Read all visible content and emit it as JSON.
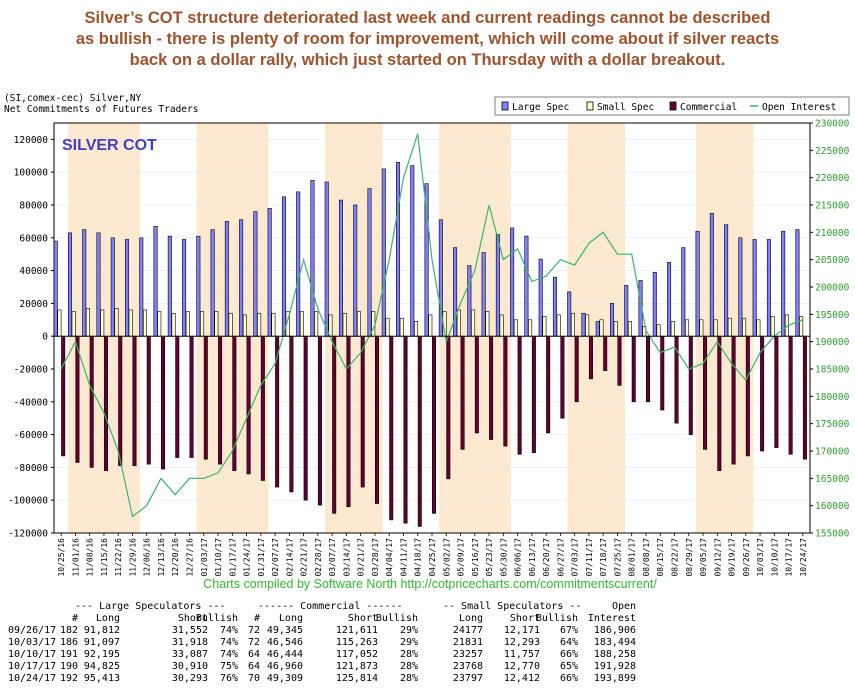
{
  "headline": [
    "Silver’s COT structure deteriorated last week and current readings cannot be described",
    "as bullish - there is plenty of room for improvement, which will come about if silver reacts",
    "back on a dollar rally, which just started on Thursday with a dollar breakout."
  ],
  "chart": {
    "header_line1": "(SI,comex-cec) Silver,NY",
    "header_line2": "Net Commitments of Futures Traders",
    "inset_title": "SILVER COT",
    "credit": "Charts compiled by Software North  http://cotpricecharts.com/commitmentscurrent/"
  },
  "chart_data": {
    "type": "bar",
    "title": "SILVER COT",
    "legend_position": "top-right",
    "left_ylim": [
      -120000,
      130000
    ],
    "right_ylim": [
      155000,
      230000
    ],
    "left_ticks": [
      "-120000",
      "-100000",
      "-80000",
      "-60000",
      "-40000",
      "-20000",
      "0",
      "20000",
      "40000",
      "60000",
      "80000",
      "100000",
      "120000"
    ],
    "right_ticks": [
      "155000",
      "160000",
      "165000",
      "170000",
      "175000",
      "180000",
      "185000",
      "190000",
      "195000",
      "200000",
      "205000",
      "210000",
      "215000",
      "220000",
      "225000",
      "230000"
    ],
    "x_tick_labels": [
      "10/25/16",
      "11/01/16",
      "11/08/16",
      "11/15/16",
      "11/22/16",
      "11/29/16",
      "12/06/16",
      "12/13/16",
      "12/20/16",
      "12/27/16",
      "01/03/17",
      "01/10/17",
      "01/17/17",
      "01/24/17",
      "01/31/17",
      "02/07/17",
      "02/14/17",
      "02/21/17",
      "02/28/17",
      "03/07/17",
      "03/14/17",
      "03/21/17",
      "03/28/17",
      "04/04/17",
      "04/11/17",
      "04/18/17",
      "04/25/17",
      "05/02/17",
      "05/09/17",
      "05/16/17",
      "05/23/17",
      "05/30/17",
      "06/06/17",
      "06/13/17",
      "06/20/17",
      "06/27/17",
      "07/03/17",
      "07/11/17",
      "07/18/17",
      "07/25/17",
      "08/01/17",
      "08/08/17",
      "08/15/17",
      "08/22/17",
      "08/29/17",
      "09/05/17",
      "09/12/17",
      "09/19/17",
      "09/26/17",
      "10/03/17",
      "10/10/17",
      "10/17/17",
      "10/24/17"
    ],
    "series": [
      {
        "name": "Large Spec",
        "color": "#8080ff",
        "values": [
          58000,
          63000,
          65000,
          63000,
          60000,
          59000,
          60000,
          67000,
          61000,
          59000,
          61000,
          65000,
          70000,
          71000,
          76000,
          78000,
          85000,
          88000,
          95000,
          94000,
          83000,
          80000,
          90000,
          102000,
          106000,
          104000,
          93000,
          71000,
          54000,
          43000,
          51000,
          62000,
          66000,
          61000,
          47000,
          36000,
          27000,
          14000,
          9000,
          20000,
          31000,
          34000,
          39000,
          45000,
          54000,
          64000,
          75000,
          68000,
          60000,
          59000,
          59000,
          64000,
          65000
        ]
      },
      {
        "name": "Small Spec",
        "color": "#ffffcc",
        "values": [
          16000,
          15000,
          17000,
          16000,
          17000,
          16000,
          16000,
          15000,
          14000,
          15000,
          15000,
          15000,
          14000,
          13000,
          14000,
          14000,
          15000,
          15000,
          15000,
          13000,
          14000,
          15000,
          15000,
          11000,
          11000,
          9000,
          13000,
          15000,
          16000,
          16000,
          15000,
          13000,
          10000,
          10000,
          12000,
          13000,
          14000,
          13000,
          10000,
          9000,
          9000,
          6000,
          7000,
          9000,
          10000,
          10000,
          10000,
          11000,
          11000,
          10000,
          12000,
          13000,
          12000
        ]
      },
      {
        "name": "Commercial",
        "color": "#660033",
        "values": [
          -73000,
          -77000,
          -80000,
          -82000,
          -79000,
          -79000,
          -78000,
          -81000,
          -74000,
          -74000,
          -75000,
          -78000,
          -82000,
          -84000,
          -88000,
          -92000,
          -95000,
          -100000,
          -103000,
          -108000,
          -104000,
          -92000,
          -102000,
          -112000,
          -114000,
          -116000,
          -108000,
          -87000,
          -69000,
          -59000,
          -63000,
          -67000,
          -72000,
          -71000,
          -59000,
          -50000,
          -40000,
          -26000,
          -21000,
          -30000,
          -40000,
          -40000,
          -45000,
          -53000,
          -60000,
          -69000,
          -82000,
          -78000,
          -73000,
          -70000,
          -68000,
          -72000,
          -75000
        ]
      }
    ],
    "open_interest": {
      "name": "Open Interest",
      "color": "#3cb371",
      "values": [
        185000,
        190000,
        182000,
        177000,
        170000,
        158000,
        160000,
        165000,
        162000,
        165000,
        165000,
        166000,
        170000,
        176000,
        182000,
        186000,
        195000,
        205000,
        196000,
        190000,
        185000,
        188000,
        193000,
        205000,
        220000,
        228000,
        205000,
        190000,
        197000,
        203000,
        215000,
        205000,
        207000,
        201000,
        202000,
        205000,
        204000,
        208000,
        210000,
        206000,
        206000,
        192000,
        188000,
        189000,
        185000,
        186000,
        190000,
        186000,
        183000,
        188000,
        191000,
        193000,
        194000
      ]
    }
  },
  "table": {
    "group_headers": [
      "--- Large Speculators ---",
      "------ Commercial ------",
      "-- Small Speculators --",
      "Open"
    ],
    "col_headers": [
      "#",
      "Long",
      "Short",
      "Bullish",
      "#",
      "Long",
      "Short",
      "Bullish",
      "Long",
      "Short",
      "Bullish",
      "Interest"
    ],
    "rows": [
      {
        "date": "09/26/17",
        "ln": "182",
        "ll": "91,812",
        "ls": "31,552",
        "lb": "74%",
        "cn": "72",
        "cl": "49,345",
        "cs": "121,611",
        "cb": "29%",
        "sl": "24177",
        "ss": "12,171",
        "sb": "67%",
        "oi": "186,906"
      },
      {
        "date": "10/03/17",
        "ln": "186",
        "ll": "91,097",
        "ls": "31,918",
        "lb": "74%",
        "cn": "72",
        "cl": "46,546",
        "cs": "115,263",
        "cb": "29%",
        "sl": "21831",
        "ss": "12,293",
        "sb": "64%",
        "oi": "183,494"
      },
      {
        "date": "10/10/17",
        "ln": "191",
        "ll": "92,195",
        "ls": "33,087",
        "lb": "74%",
        "cn": "64",
        "cl": "46,444",
        "cs": "117,052",
        "cb": "28%",
        "sl": "23257",
        "ss": "11,757",
        "sb": "66%",
        "oi": "188,258"
      },
      {
        "date": "10/17/17",
        "ln": "190",
        "ll": "94,825",
        "ls": "30,910",
        "lb": "75%",
        "cn": "64",
        "cl": "46,960",
        "cs": "121,873",
        "cb": "28%",
        "sl": "23768",
        "ss": "12,770",
        "sb": "65%",
        "oi": "191,928"
      },
      {
        "date": "10/24/17",
        "ln": "192",
        "ll": "95,413",
        "ls": "30,293",
        "lb": "76%",
        "cn": "70",
        "cl": "49,309",
        "cs": "125,814",
        "cb": "28%",
        "sl": "23797",
        "ss": "12,412",
        "sb": "66%",
        "oi": "193,899"
      }
    ]
  }
}
